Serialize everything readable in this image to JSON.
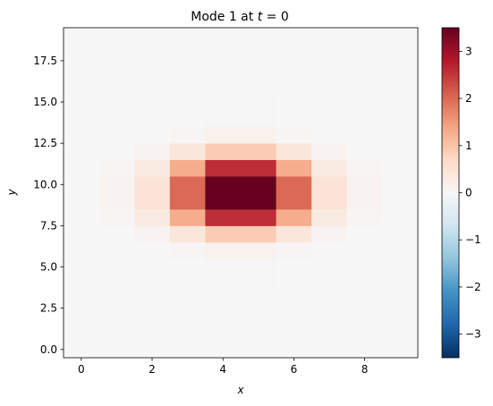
{
  "chart_data": {
    "type": "heatmap",
    "title_prefix": "Mode 1 at ",
    "title_var": "t",
    "title_suffix": " = 0",
    "xlabel": "x",
    "ylabel": "y",
    "xlim": [
      -0.5,
      9.5
    ],
    "ylim": [
      -0.5,
      19.5
    ],
    "x_ticks": [
      0,
      2,
      4,
      6,
      8
    ],
    "x_tick_labels": [
      "0",
      "2",
      "4",
      "6",
      "8"
    ],
    "y_ticks": [
      0,
      2.5,
      5,
      7.5,
      10,
      12.5,
      15,
      17.5
    ],
    "y_tick_labels": [
      "0.0",
      "2.5",
      "5.0",
      "7.5",
      "10.0",
      "12.5",
      "15.0",
      "17.5"
    ],
    "colormap": "RdBu_r",
    "vmin": -3.5,
    "vmax": 3.5,
    "colorbar_ticks": [
      -3,
      -2,
      -1,
      0,
      1,
      2,
      3
    ],
    "colorbar_tick_labels": [
      "−3",
      "−2",
      "−1",
      "0",
      "1",
      "2",
      "3"
    ],
    "grid": false,
    "y_edges": [
      -0.5,
      1.5,
      3.5,
      5.5,
      6.5,
      7.5,
      8.5,
      9.5,
      10.5,
      11.5,
      12.5,
      13.5,
      15.5,
      19.5
    ],
    "x_edges": [
      -0.5,
      0.5,
      1.5,
      2.5,
      3.5,
      4.5,
      5.5,
      6.5,
      7.5,
      8.5,
      9.5
    ],
    "z": [
      [
        0.0,
        0.0,
        0.0,
        0.0,
        0.0,
        0.0,
        0.0,
        0.0,
        0.0,
        0.0
      ],
      [
        0.0,
        0.0,
        0.0,
        0.0,
        0.0,
        0.0,
        0.0,
        0.0,
        0.0,
        0.0
      ],
      [
        0.0,
        0.0,
        0.0,
        0.0,
        0.02,
        0.02,
        0.0,
        0.0,
        0.0,
        0.0
      ],
      [
        0.0,
        0.0,
        0.0,
        0.05,
        0.15,
        0.15,
        0.05,
        0.0,
        0.0,
        0.0
      ],
      [
        0.0,
        0.0,
        0.1,
        0.4,
        0.9,
        0.9,
        0.4,
        0.1,
        0.0,
        0.0
      ],
      [
        0.0,
        0.05,
        0.3,
        1.3,
        2.6,
        2.6,
        1.3,
        0.3,
        0.05,
        0.0
      ],
      [
        0.0,
        0.1,
        0.5,
        2.0,
        3.5,
        3.5,
        2.0,
        0.5,
        0.1,
        0.0
      ],
      [
        0.0,
        0.1,
        0.5,
        2.0,
        3.5,
        3.5,
        2.0,
        0.5,
        0.1,
        0.0
      ],
      [
        0.0,
        0.05,
        0.3,
        1.3,
        2.6,
        2.6,
        1.3,
        0.3,
        0.05,
        0.0
      ],
      [
        0.0,
        0.0,
        0.1,
        0.4,
        0.9,
        0.9,
        0.4,
        0.1,
        0.0,
        0.0
      ],
      [
        0.0,
        0.0,
        0.0,
        0.05,
        0.15,
        0.15,
        0.05,
        0.0,
        0.0,
        0.0
      ],
      [
        0.0,
        0.0,
        0.0,
        0.0,
        0.02,
        0.02,
        0.0,
        0.0,
        0.0,
        0.0
      ],
      [
        0.0,
        0.0,
        0.0,
        0.0,
        0.0,
        0.0,
        0.0,
        0.0,
        0.0,
        0.0
      ]
    ]
  }
}
